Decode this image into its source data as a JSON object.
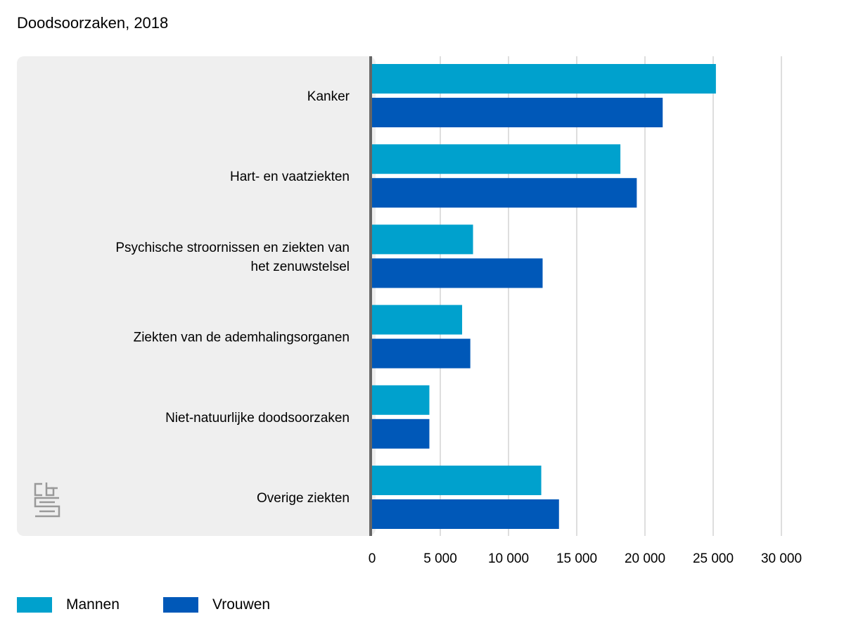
{
  "chart_data": {
    "type": "bar",
    "orientation": "horizontal",
    "title": "Doodsoorzaken, 2018",
    "categories": [
      [
        "Kanker"
      ],
      [
        "Hart- en vaatziekten"
      ],
      [
        "Psychische stroornissen en ziekten van",
        "het zenuwstelsel"
      ],
      [
        "Ziekten van de ademhalingsorganen"
      ],
      [
        "Niet-natuurlijke doodsoorzaken"
      ],
      [
        "Overige ziekten"
      ]
    ],
    "series": [
      {
        "name": "Mannen",
        "color": "#00a1cd",
        "values": [
          25200,
          18200,
          7400,
          6600,
          4200,
          12400
        ]
      },
      {
        "name": "Vrouwen",
        "color": "#0058b8",
        "values": [
          21300,
          19400,
          12500,
          7200,
          4200,
          13700
        ]
      }
    ],
    "xlim": [
      0,
      30000
    ],
    "x_ticks": [
      0,
      5000,
      10000,
      15000,
      20000,
      25000,
      30000
    ],
    "x_tick_labels": [
      "0",
      "5 000",
      "10 000",
      "15 000",
      "20 000",
      "25 000",
      "30 000"
    ],
    "grid": true,
    "legend_position": "bottom-left",
    "logo_icon": "cbs-logo-icon"
  }
}
